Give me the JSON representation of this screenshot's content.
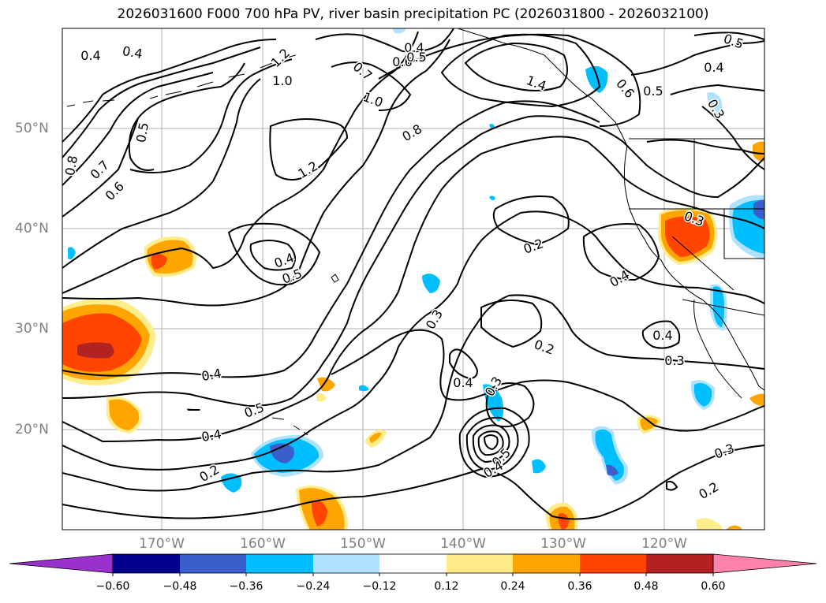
{
  "title": "2026031600 F000 700 hPa PV, river basin precipitation PC (2026031800 - 2026032100)",
  "map": {
    "lon_labels": [
      "170°W",
      "160°W",
      "150°W",
      "140°W",
      "130°W",
      "120°W"
    ],
    "lat_labels": [
      "50°N",
      "40°N",
      "30°N",
      "20°N"
    ],
    "contour_labels": [
      "0.4",
      "0.4",
      "1.2",
      "1.0",
      "0.7",
      "0.6",
      "0.4",
      "0.5",
      "1.0",
      "1.4",
      "0.6",
      "0.5",
      "0.4",
      "0.5",
      "0.3",
      "0.8",
      "0.7",
      "0.6",
      "0.8",
      "1.2",
      "0.5",
      "0.3",
      "0.4",
      "0.5",
      "0.2",
      "0.4",
      "0.3",
      "0.2",
      "0.4",
      "0.3",
      "0.4",
      "0.5",
      "0.4",
      "0.4",
      "0.3",
      "0.5",
      "0.4",
      "0.2",
      "0.3",
      "0.2"
    ]
  },
  "colorbar": {
    "tick_labels": [
      "−0.60",
      "−0.48",
      "−0.36",
      "−0.24",
      "−0.12",
      "0.12",
      "0.24",
      "0.36",
      "0.48",
      "0.60"
    ],
    "colors": [
      "#9932cc",
      "#00008b",
      "#3a5fcd",
      "#00bfff",
      "#b0e2ff",
      "#ffffff",
      "#ffec8b",
      "#ffa500",
      "#ff4500",
      "#b22222",
      "#ff82ab"
    ]
  }
}
